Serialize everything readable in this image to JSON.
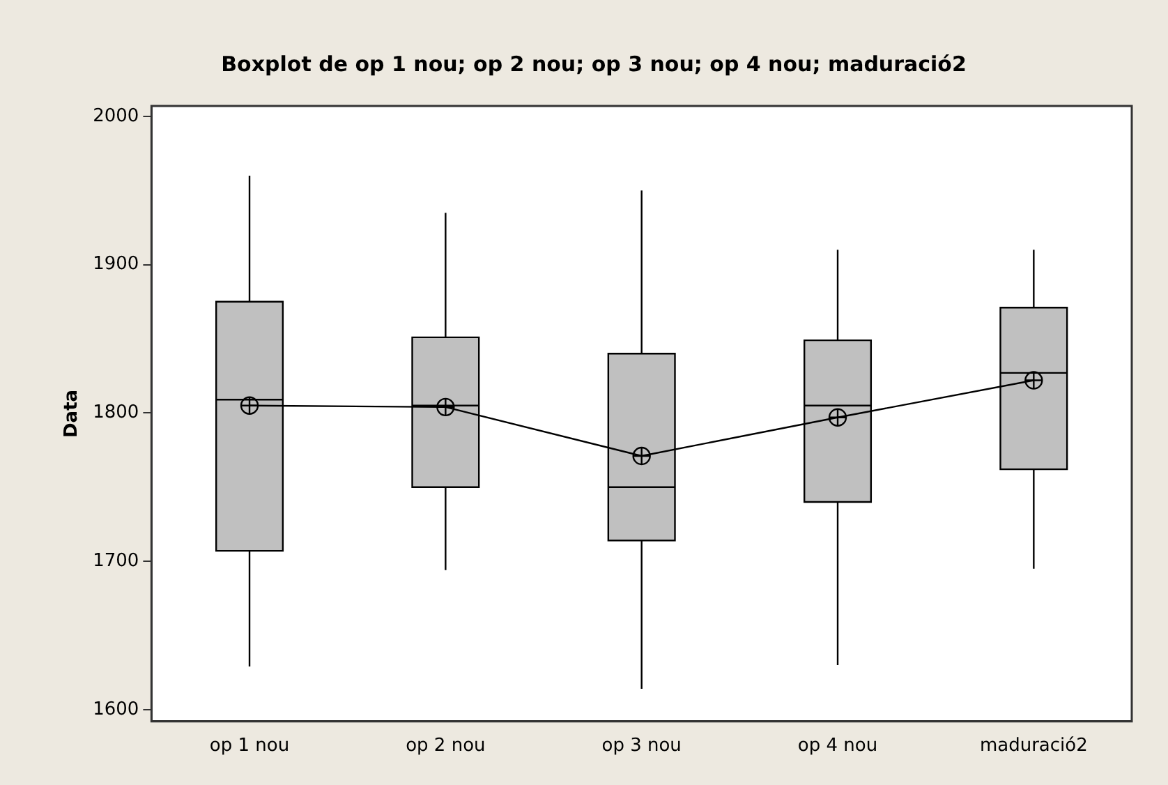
{
  "chart_data": {
    "type": "box",
    "title": "Boxplot de op 1 nou; op 2 nou; op 3 nou; op 4 nou; maduració2",
    "ylabel": "Data",
    "categories": [
      "op 1 nou",
      "op 2 nou",
      "op 3 nou",
      "op 4 nou",
      "maduració2"
    ],
    "ylim": [
      1592,
      2007
    ],
    "yticks": [
      1600,
      1700,
      1800,
      1900,
      2000
    ],
    "grid": false,
    "legend": false,
    "boxes": [
      {
        "low": 1629,
        "q1": 1707,
        "median": 1809,
        "q3": 1875,
        "high": 1960
      },
      {
        "low": 1694,
        "q1": 1750,
        "median": 1805,
        "q3": 1851,
        "high": 1935
      },
      {
        "low": 1614,
        "q1": 1714,
        "median": 1750,
        "q3": 1840,
        "high": 1950
      },
      {
        "low": 1630,
        "q1": 1740,
        "median": 1805,
        "q3": 1849,
        "high": 1910
      },
      {
        "low": 1695,
        "q1": 1762,
        "median": 1827,
        "q3": 1871,
        "high": 1910
      }
    ],
    "color": "#c0c0c0",
    "series": [
      {
        "type": "line",
        "color": "#000000",
        "marker": "circle",
        "values": [
          1805,
          1804,
          1771,
          1797,
          1822
        ]
      }
    ]
  }
}
